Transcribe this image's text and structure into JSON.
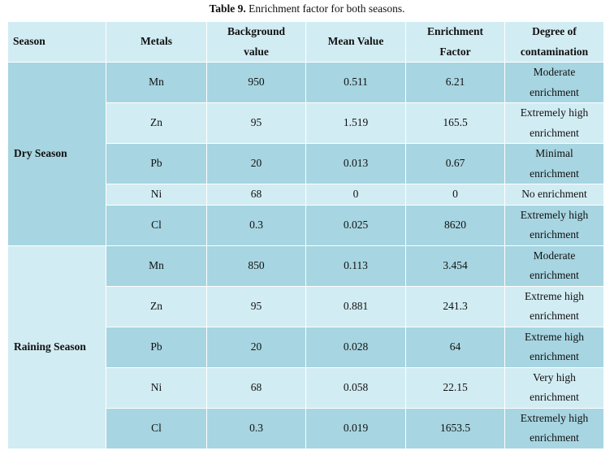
{
  "caption": {
    "label": "Table 9.",
    "text": " Enrichment factor for both seasons."
  },
  "headers": {
    "season": "Season",
    "metals": "Metals",
    "background_1": "Background",
    "background_2": "value",
    "mean": "Mean Value",
    "ef_1": "Enrichment",
    "ef_2": "Factor",
    "deg_1": "Degree of",
    "deg_2": "contamination"
  },
  "seasons": [
    {
      "name": "Dry Season",
      "rows": [
        {
          "metal": "Mn",
          "background": "950",
          "mean": "0.511",
          "ef": "6.21",
          "deg1": "Moderate",
          "deg2": "enrichment"
        },
        {
          "metal": "Zn",
          "background": "95",
          "mean": "1.519",
          "ef": "165.5",
          "deg1": "Extremely high",
          "deg2": "enrichment"
        },
        {
          "metal": "Pb",
          "background": "20",
          "mean": "0.013",
          "ef": "0.67",
          "deg1": "Minimal",
          "deg2": "enrichment"
        },
        {
          "metal": "Ni",
          "background": "68",
          "mean": "0",
          "ef": "0",
          "deg1": "No enrichment",
          "deg2": ""
        },
        {
          "metal": "Cl",
          "background": "0.3",
          "mean": "0.025",
          "ef": "8620",
          "deg1": "Extremely high",
          "deg2": "enrichment"
        }
      ]
    },
    {
      "name": "Raining Season",
      "rows": [
        {
          "metal": "Mn",
          "background": "850",
          "mean": "0.113",
          "ef": "3.454",
          "deg1": "Moderate",
          "deg2": "enrichment"
        },
        {
          "metal": "Zn",
          "background": "95",
          "mean": "0.881",
          "ef": "241.3",
          "deg1": "Extreme high",
          "deg2": "enrichment"
        },
        {
          "metal": "Pb",
          "background": "20",
          "mean": "0.028",
          "ef": "64",
          "deg1": "Extreme high",
          "deg2": "enrichment"
        },
        {
          "metal": "Ni",
          "background": "68",
          "mean": "0.058",
          "ef": "22.15",
          "deg1": "Very high",
          "deg2": "enrichment"
        },
        {
          "metal": "Cl",
          "background": "0.3",
          "mean": "0.019",
          "ef": "1653.5",
          "deg1": "Extremely high",
          "deg2": "enrichment"
        }
      ]
    }
  ]
}
